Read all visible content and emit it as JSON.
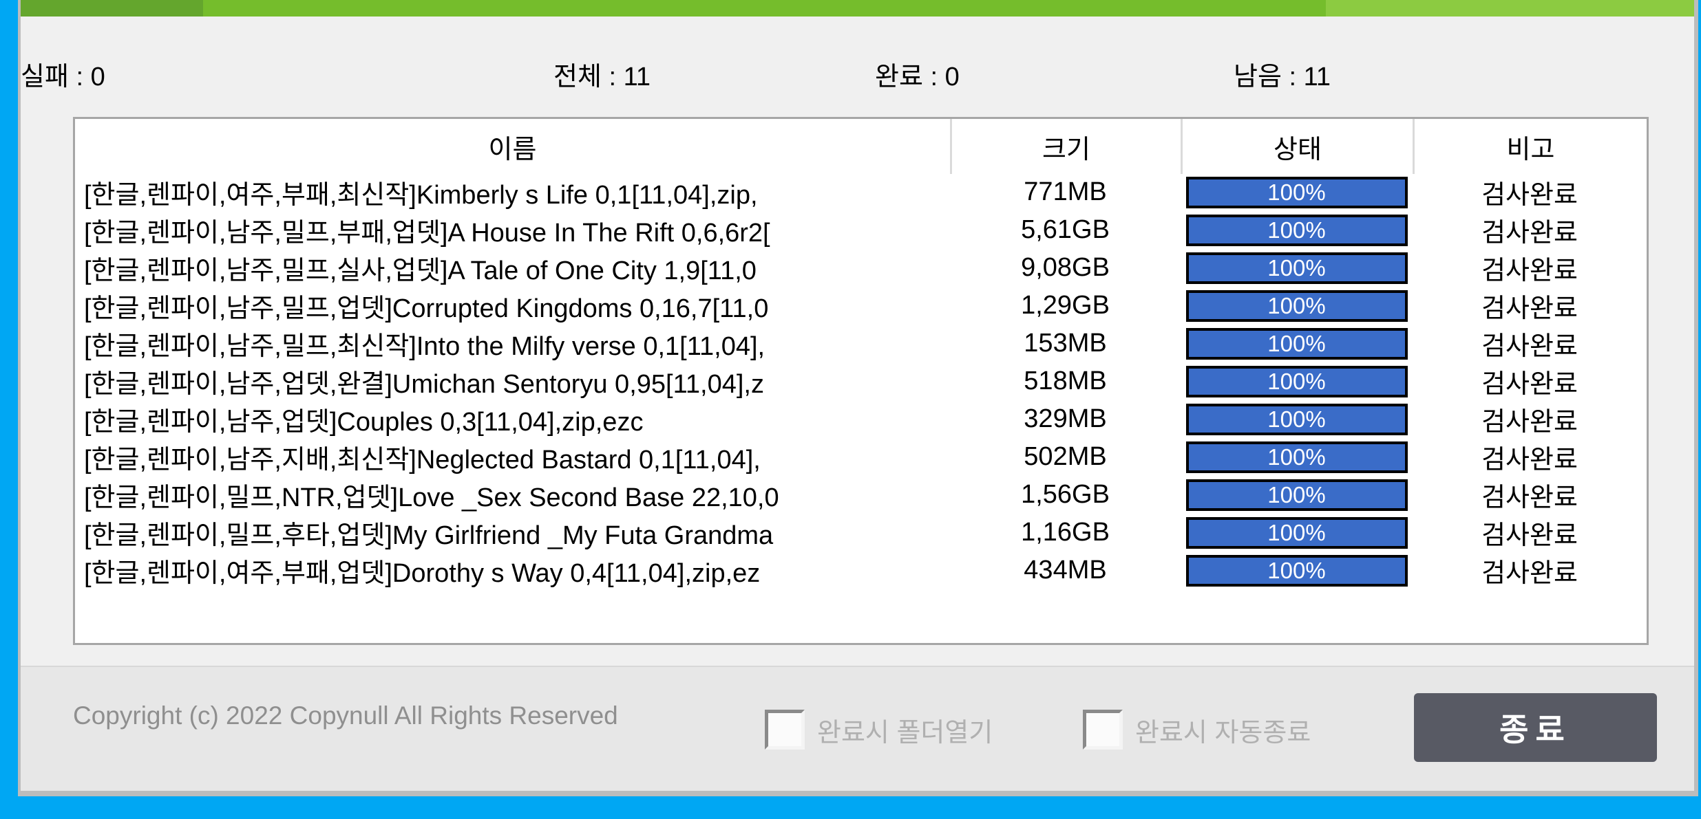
{
  "window": {
    "stats": [
      {
        "id": "total",
        "text": "전체 : 11"
      },
      {
        "id": "complete",
        "text": "완료 : 0"
      },
      {
        "id": "remaining",
        "text": "남음 : 11"
      },
      {
        "id": "failed",
        "text": "실패 : 0"
      }
    ],
    "table": {
      "headers": [
        "이름",
        "크기",
        "상태",
        "비고"
      ],
      "rows": [
        {
          "name": "[한글,렌파이,여주,부패,최신작]Kimberly s Life 0,1[11,04],zip,",
          "size": "771MB",
          "progress": "100%",
          "note": "검사완료"
        },
        {
          "name": "[한글,렌파이,남주,밀프,부패,업뎃]A House In The Rift 0,6,6r2[",
          "size": "5,61GB",
          "progress": "100%",
          "note": "검사완료"
        },
        {
          "name": "[한글,렌파이,남주,밀프,실사,업뎃]A Tale of One City 1,9[11,0",
          "size": "9,08GB",
          "progress": "100%",
          "note": "검사완료"
        },
        {
          "name": "[한글,렌파이,남주,밀프,업뎃]Corrupted Kingdoms 0,16,7[11,0",
          "size": "1,29GB",
          "progress": "100%",
          "note": "검사완료"
        },
        {
          "name": "[한글,렌파이,남주,밀프,최신작]Into the Milfy verse 0,1[11,04],",
          "size": "153MB",
          "progress": "100%",
          "note": "검사완료"
        },
        {
          "name": "[한글,렌파이,남주,업뎃,완결]Umichan Sentoryu 0,95[11,04],z",
          "size": "518MB",
          "progress": "100%",
          "note": "검사완료"
        },
        {
          "name": "[한글,렌파이,남주,업뎃]Couples 0,3[11,04],zip,ezc",
          "size": "329MB",
          "progress": "100%",
          "note": "검사완료"
        },
        {
          "name": "[한글,렌파이,남주,지배,최신작]Neglected Bastard 0,1[11,04],",
          "size": "502MB",
          "progress": "100%",
          "note": "검사완료"
        },
        {
          "name": "[한글,렌파이,밀프,NTR,업뎃]Love _Sex Second Base 22,10,0",
          "size": "1,56GB",
          "progress": "100%",
          "note": "검사완료"
        },
        {
          "name": "[한글,렌파이,밀프,후타,업뎃]My Girlfriend _My Futa Grandma",
          "size": "1,16GB",
          "progress": "100%",
          "note": "검사완료"
        },
        {
          "name": "[한글,렌파이,여주,부패,업뎃]Dorothy s Way 0,4[11,04],zip,ez",
          "size": "434MB",
          "progress": "100%",
          "note": "검사완료"
        }
      ]
    },
    "footer": {
      "copyright": "Copyright (c) 2022 Copynull All Rights Reserved",
      "checkboxes": [
        {
          "label": "완료시 폴더열기",
          "checked": false
        },
        {
          "label": "완료시 자동종료",
          "checked": false
        }
      ],
      "exit_label": "종료"
    },
    "colors": {
      "desktop_blue": "#00a7f3",
      "titlebar_green_dark": "#64a62d",
      "titlebar_green_mid": "#75bd2c",
      "titlebar_green_light": "#8ccb41",
      "progress_blue": "#3a6cc8",
      "exit_button_gray": "#585a64",
      "content_bg": "#f0f0f0",
      "footer_bg": "#e7e7e7"
    }
  }
}
